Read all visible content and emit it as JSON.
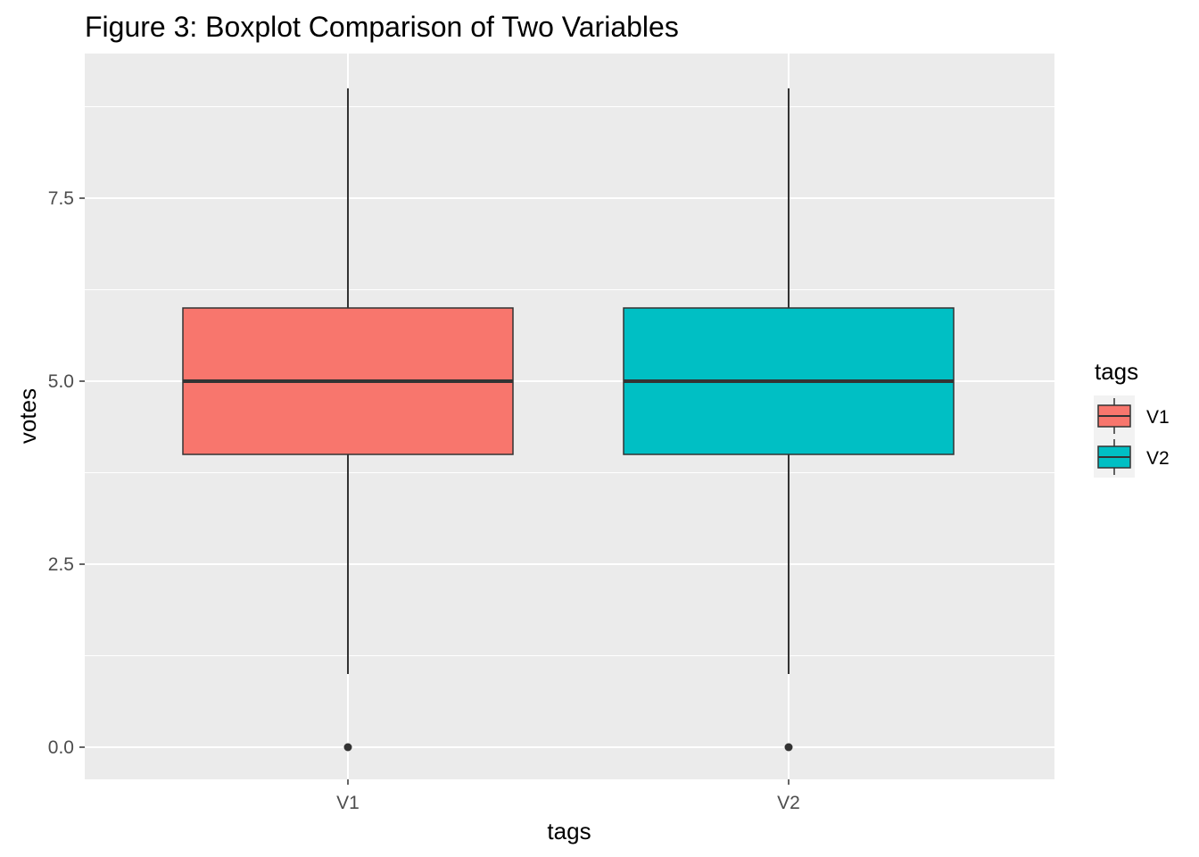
{
  "chart_data": {
    "type": "boxplot",
    "title": "Figure 3: Boxplot Comparison of Two Variables",
    "xlabel": "tags",
    "ylabel": "votes",
    "categories": [
      "V1",
      "V2"
    ],
    "ylim": [
      -0.45,
      9.0
    ],
    "yticks": [
      "0.0",
      "2.5",
      "5.0",
      "7.5"
    ],
    "ytick_values": [
      0,
      2.5,
      5,
      7.5
    ],
    "boxes": [
      {
        "name": "V1",
        "whisker_low": 1,
        "q1": 4,
        "median": 5,
        "q3": 6,
        "whisker_high": 9,
        "outliers": [
          0
        ],
        "color": "#F8766D"
      },
      {
        "name": "V2",
        "whisker_low": 1,
        "q1": 4,
        "median": 5,
        "q3": 6,
        "whisker_high": 9,
        "outliers": [
          0
        ],
        "color": "#00BFC4"
      }
    ],
    "legend": {
      "title": "tags",
      "position": "right",
      "entries": [
        {
          "label": "V1",
          "color": "#F8766D"
        },
        {
          "label": "V2",
          "color": "#00BFC4"
        }
      ]
    },
    "grid": true,
    "panel_background": "#EBEBEB"
  }
}
